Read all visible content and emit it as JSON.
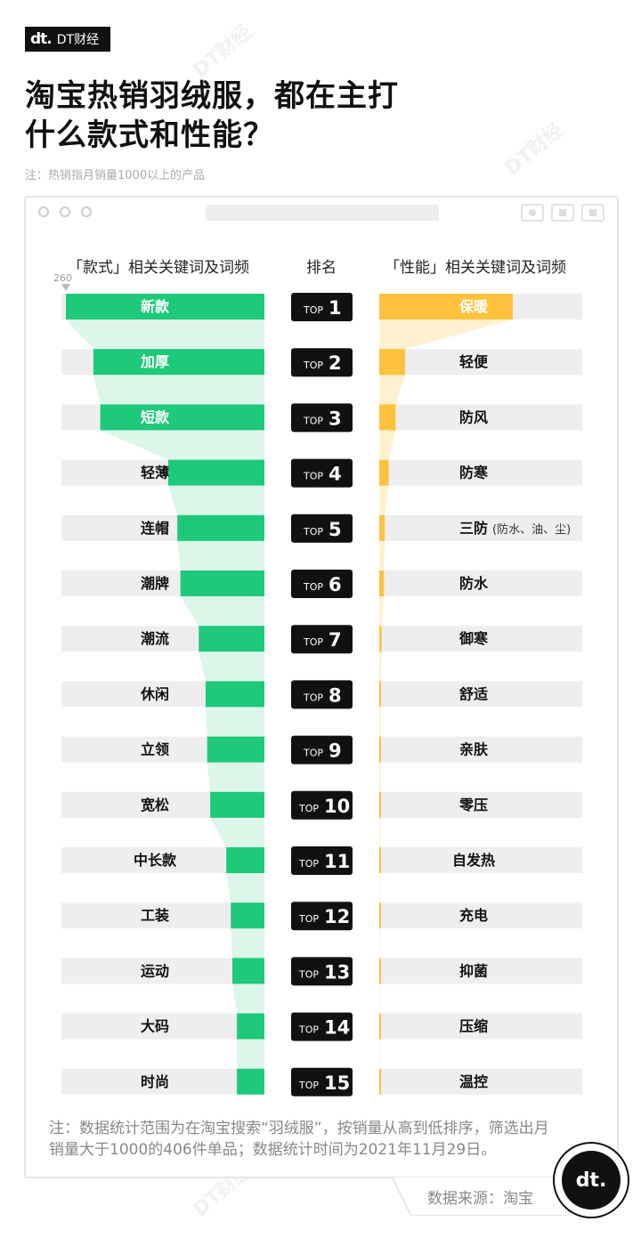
{
  "brand": {
    "mark": "dt.",
    "name": "DT财经"
  },
  "title": {
    "line1": "淘宝热销羽绒服，都在主打",
    "line2": "什么款式和性能？"
  },
  "note_top": "注：热销指月销量1000以上的产品",
  "chart_data": {
    "type": "bar",
    "headers": {
      "left": "「款式」相关关键词及词频",
      "center": "排名",
      "right": "「性能」相关关键词及词频"
    },
    "max_marker": "260",
    "ranks": [
      "1",
      "2",
      "3",
      "4",
      "5",
      "6",
      "7",
      "8",
      "9",
      "10",
      "11",
      "12",
      "13",
      "14",
      "15"
    ],
    "rank_prefix": "TOP",
    "styles": {
      "labels": [
        "新款",
        "加厚",
        "短款",
        "轻薄",
        "连帽",
        "潮牌",
        "潮流",
        "休闲",
        "立领",
        "宽松",
        "中长款",
        "工装",
        "运动",
        "大码",
        "时尚"
      ],
      "values": [
        260,
        224,
        215,
        126,
        114,
        110,
        86,
        77,
        75,
        71,
        50,
        44,
        42,
        36,
        36
      ],
      "color": "#1ec97a",
      "funnel_color": "#dcf6e9"
    },
    "performance": {
      "labels": [
        "保暖",
        "轻便",
        "防风",
        "防寒",
        "三防",
        "防水",
        "御寒",
        "舒适",
        "亲肤",
        "零压",
        "自发热",
        "充电",
        "抑菌",
        "压缩",
        "温控"
      ],
      "sublabels": [
        "",
        "",
        "",
        "",
        "(防水、油、尘)",
        "",
        "",
        "",
        "",
        "",
        "",
        "",
        "",
        "",
        ""
      ],
      "values": [
        171,
        33,
        21,
        12,
        7,
        6,
        3,
        2,
        2,
        2,
        1,
        1,
        1,
        1,
        1
      ],
      "color": "#ffc23d",
      "funnel_color": "#fff0cf"
    },
    "xlim": [
      0,
      260
    ],
    "row_background": "#eeeeee"
  },
  "note_bottom": "注：数据统计范围为在淘宝搜索“羽绒服”，按销量从高到低排序，筛选出月销量大于1000的406件单品；数据统计时间为2021年11月29日。",
  "source": "数据来源：淘宝",
  "logo_mark": "dt."
}
